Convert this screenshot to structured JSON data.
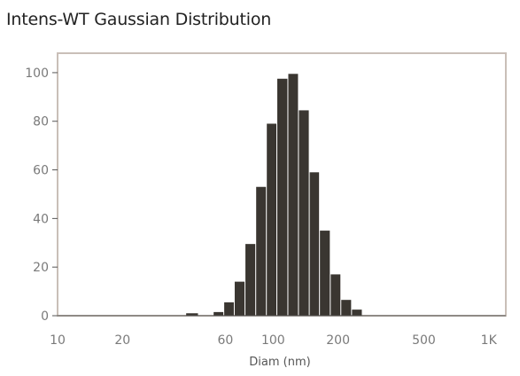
{
  "chart_data": {
    "type": "bar",
    "title": "Intens-WT Gaussian Distribution",
    "xlabel": "Diam (nm)",
    "ylabel": "",
    "x_scale": "log",
    "xlim": [
      10,
      1200
    ],
    "ylim": [
      0,
      108
    ],
    "x_ticks": [
      {
        "value": 10,
        "label": "10"
      },
      {
        "value": 20,
        "label": "20"
      },
      {
        "value": 60,
        "label": "60"
      },
      {
        "value": 100,
        "label": "100"
      },
      {
        "value": 200,
        "label": "200"
      },
      {
        "value": 500,
        "label": "500"
      },
      {
        "value": 1000,
        "label": "1K"
      }
    ],
    "y_ticks": [
      {
        "value": 0,
        "label": "0"
      },
      {
        "value": 20,
        "label": "20"
      },
      {
        "value": 40,
        "label": "40"
      },
      {
        "value": 60,
        "label": "60"
      },
      {
        "value": 80,
        "label": "80"
      },
      {
        "value": 100,
        "label": "100"
      }
    ],
    "bins": [
      {
        "lower": 39.3,
        "upper": 45.0,
        "value": 1
      },
      {
        "lower": 52.7,
        "upper": 59.0,
        "value": 1.5
      },
      {
        "lower": 59.0,
        "upper": 66.0,
        "value": 5.5
      },
      {
        "lower": 66.0,
        "upper": 74.0,
        "value": 14
      },
      {
        "lower": 74.0,
        "upper": 83.0,
        "value": 29.5
      },
      {
        "lower": 83.0,
        "upper": 93.0,
        "value": 53
      },
      {
        "lower": 93.0,
        "upper": 104.0,
        "value": 79
      },
      {
        "lower": 104.0,
        "upper": 117.0,
        "value": 97.5
      },
      {
        "lower": 117.0,
        "upper": 131.0,
        "value": 99.5
      },
      {
        "lower": 131.0,
        "upper": 147.0,
        "value": 84.5
      },
      {
        "lower": 147.0,
        "upper": 164.0,
        "value": 59
      },
      {
        "lower": 164.0,
        "upper": 184.0,
        "value": 35
      },
      {
        "lower": 184.0,
        "upper": 206.0,
        "value": 17
      },
      {
        "lower": 206.0,
        "upper": 231.0,
        "value": 6.5
      },
      {
        "lower": 231.0,
        "upper": 259.0,
        "value": 2.5
      }
    ],
    "grid": false,
    "legend": "none",
    "colors": {
      "bar": "#3a3631",
      "frame": "#c9bfb8",
      "axis": "#555555",
      "tick_text": "#7a7a7a"
    }
  }
}
